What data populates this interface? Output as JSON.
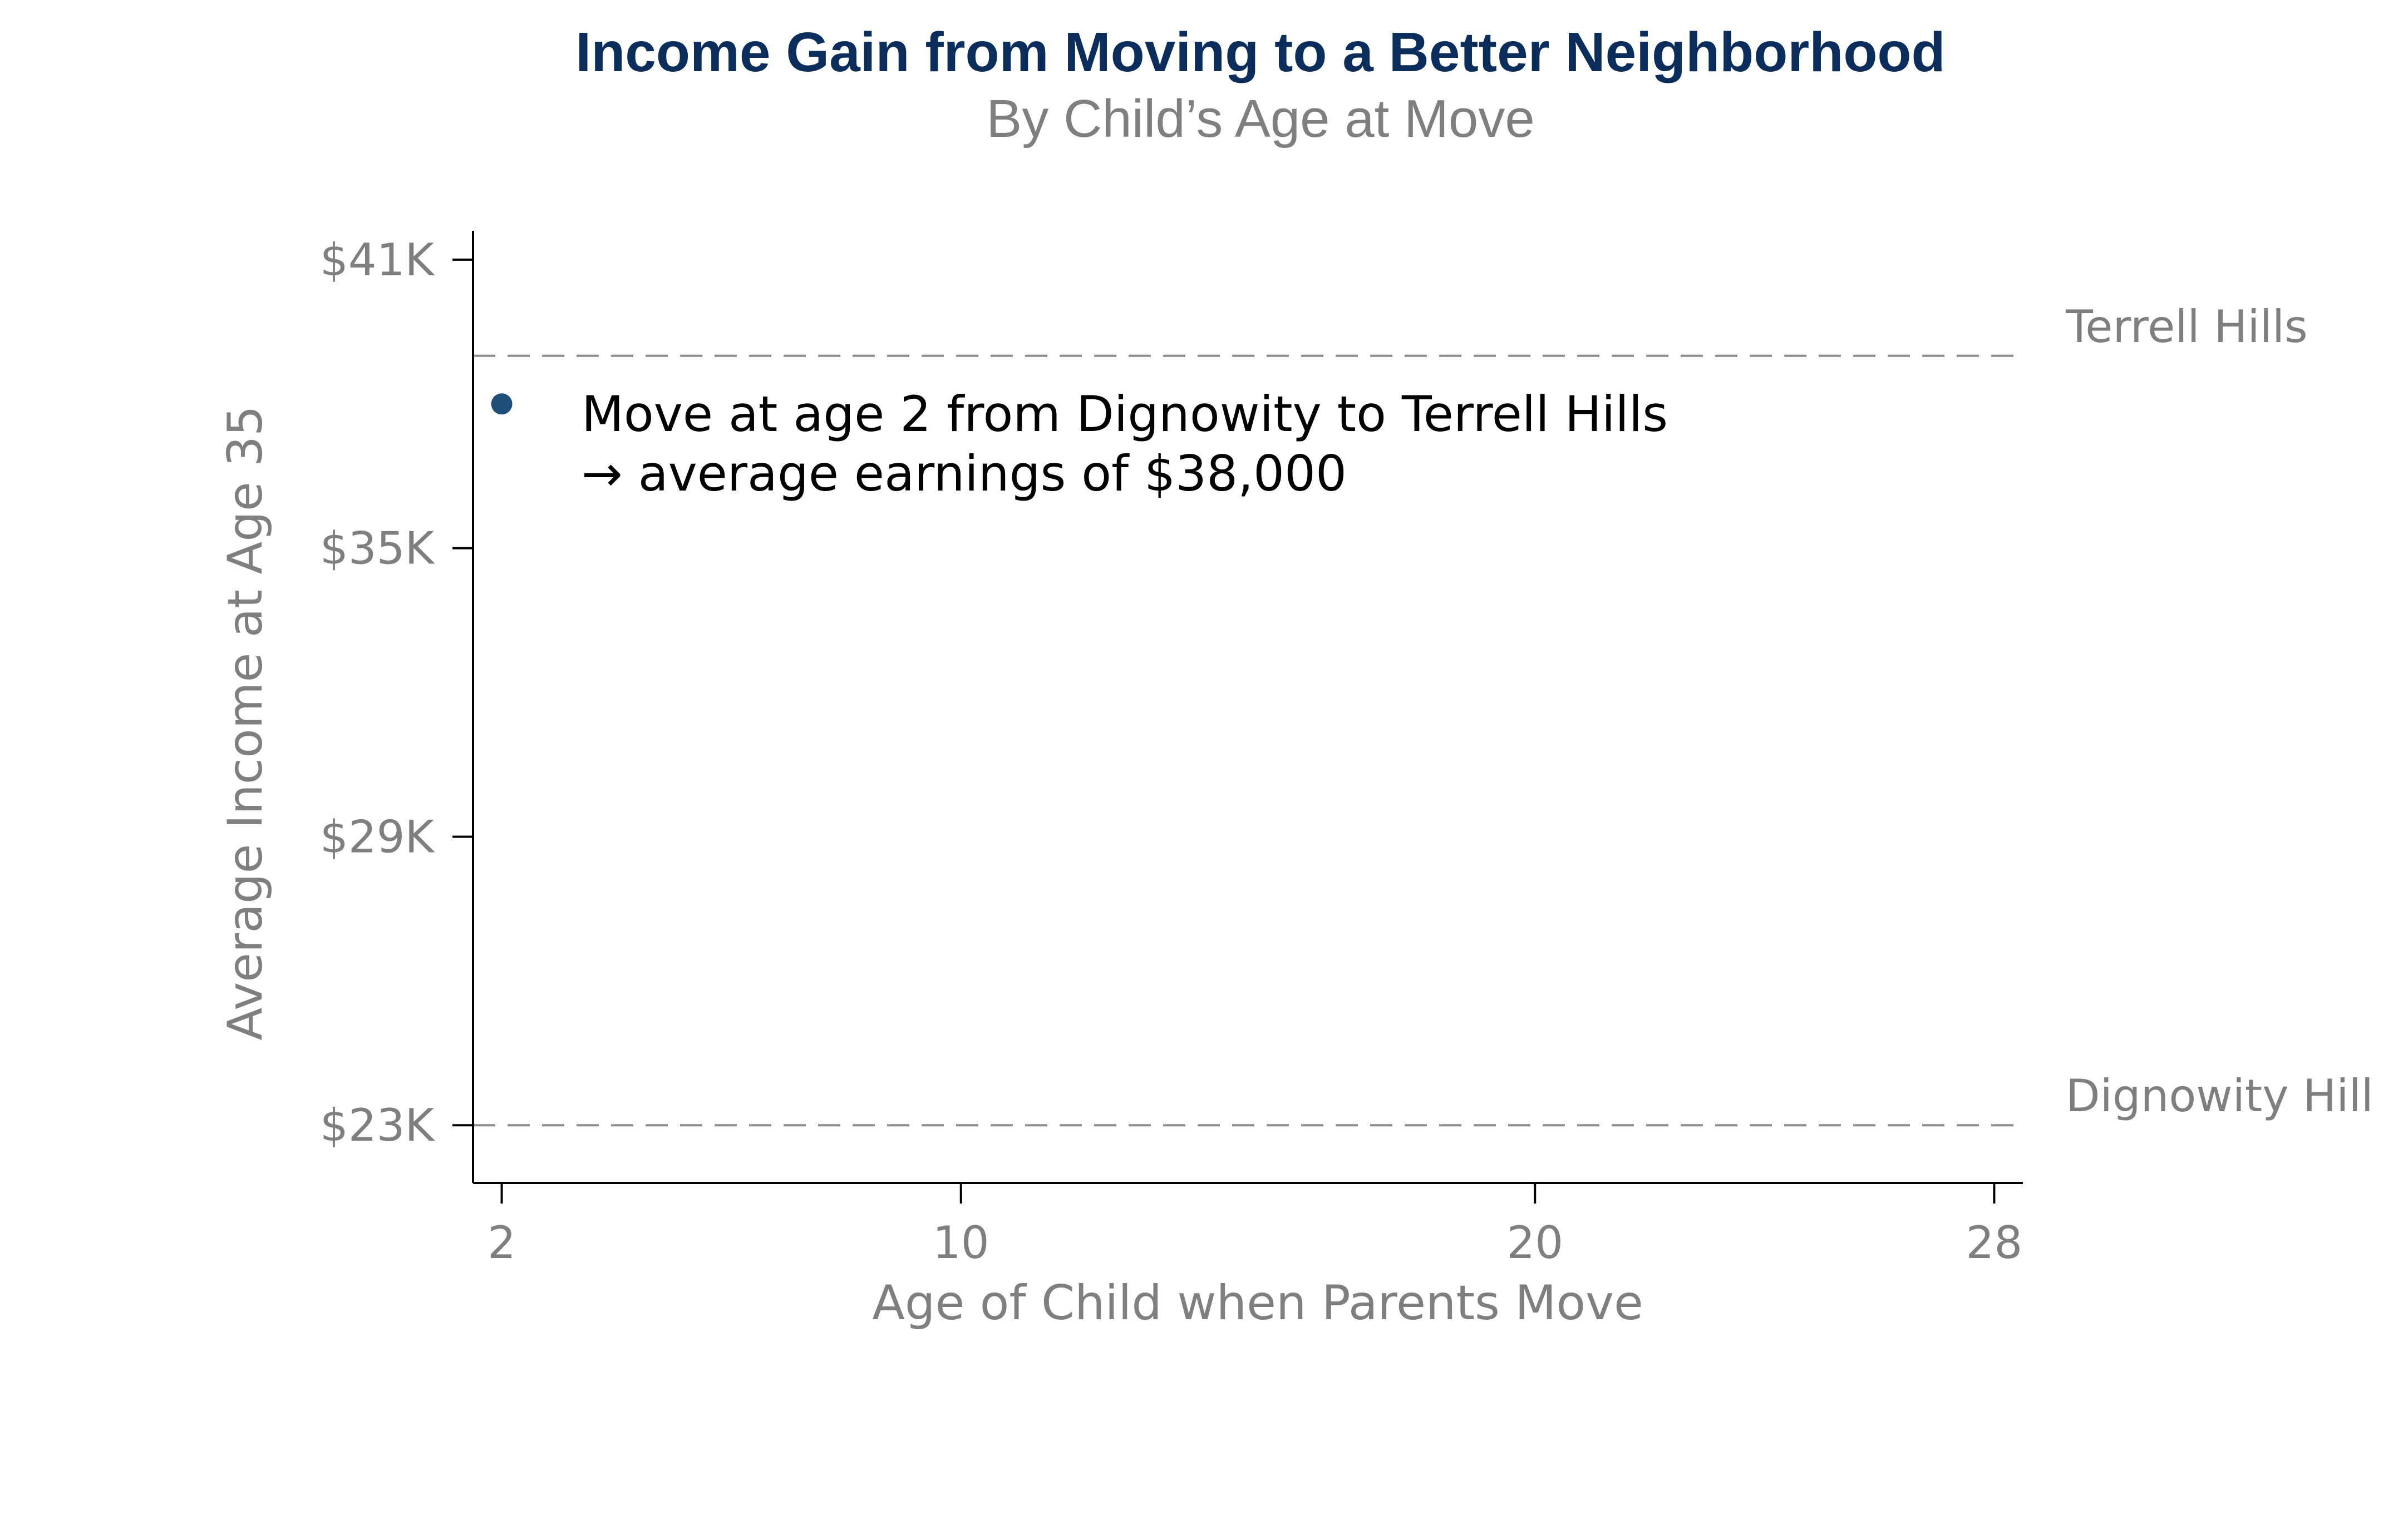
{
  "chart_data": {
    "type": "scatter",
    "title": "Income Gain from Moving to a Better Neighborhood",
    "subtitle": "By Child’s Age at Move",
    "xlabel": "Age of Child when Parents Move",
    "ylabel": "Average Income at Age 35",
    "xlim": [
      1.5,
      28.5
    ],
    "ylim": [
      21800,
      41600
    ],
    "x_ticks": [
      2,
      10,
      20,
      28
    ],
    "x_tick_labels": [
      "2",
      "10",
      "20",
      "28"
    ],
    "y_ticks": [
      23000,
      29000,
      35000,
      41000
    ],
    "y_tick_labels": [
      "$23K",
      "$29K",
      "$35K",
      "$41K"
    ],
    "grid": false,
    "points": [
      {
        "x": 2,
        "y": 38000
      }
    ],
    "reference_lines": [
      {
        "label": "Terrell Hills",
        "y": 39000
      },
      {
        "label": "Dignowity Hill",
        "y": 23000
      }
    ],
    "annotation": {
      "line1": "Move at age 2 from Dignowity to Terrell Hills",
      "line2": "→ average earnings of $38,000"
    },
    "colors": {
      "title": "#0a2d5c",
      "point": "#1f4e79",
      "muted_text": "#7f7f7f",
      "reference_line": "#8c8c8c",
      "axis": "#000000"
    }
  }
}
